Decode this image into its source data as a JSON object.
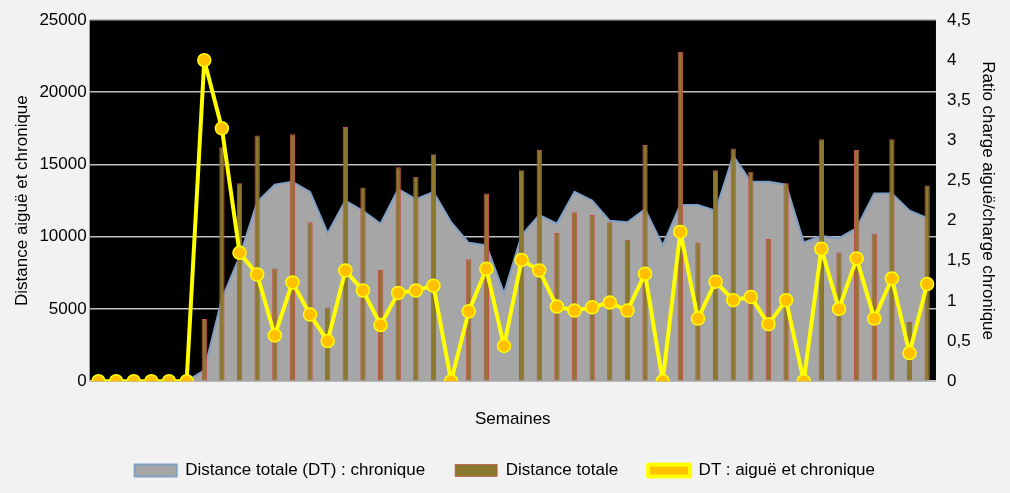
{
  "chart_data": {
    "type": "bar",
    "xlabel": "Semaines",
    "ylabel": "Distance aiguë et chronique",
    "y2label": "Ratio charge aiguë/charge chronique",
    "categories": [
      null,
      null,
      null,
      null,
      null,
      null,
      null,
      null,
      null,
      null,
      null,
      null,
      null,
      null,
      null,
      null,
      null,
      null,
      null,
      null,
      null,
      null,
      null,
      null,
      null,
      null,
      null,
      null,
      null,
      null,
      null,
      null,
      null,
      null,
      null,
      null,
      null,
      null,
      null,
      null,
      null,
      null,
      null,
      null,
      null,
      null,
      null,
      null
    ],
    "series": [
      {
        "name": "Distance totale (DT) : chronique",
        "type": "area",
        "color": "#a6a6a6",
        "values": [
          0,
          0,
          0,
          0,
          0,
          0,
          750,
          5700,
          8600,
          12400,
          13600,
          13800,
          13100,
          10250,
          12500,
          11800,
          10900,
          13300,
          12600,
          13100,
          11000,
          9580,
          9400,
          6100,
          10100,
          11500,
          10900,
          13100,
          12500,
          11100,
          11000,
          11900,
          9400,
          12200,
          12200,
          11800,
          15600,
          13800,
          13800,
          13600,
          9600,
          10050,
          9900,
          10600,
          13000,
          13000,
          11800,
          11300
        ]
      },
      {
        "name": "Distance totale",
        "color": "#8b7a2e",
        "values": [
          null,
          null,
          null,
          null,
          null,
          null,
          4300,
          16200,
          13700,
          17000,
          7800,
          17100,
          11000,
          5100,
          17600,
          13400,
          7700,
          14800,
          14150,
          15700,
          null,
          8440,
          13000,
          null,
          14600,
          16000,
          10250,
          11700,
          11500,
          11000,
          9780,
          16350,
          null,
          22800,
          9600,
          14600,
          16100,
          14500,
          9850,
          13700,
          null,
          16750,
          8900,
          16000,
          10200,
          16750,
          4100,
          13550
        ]
      },
      {
        "name": "DT : aiguë et chronique",
        "type": "line",
        "axis": "y2",
        "marker": "circle",
        "color": "#ffff00",
        "values": [
          0,
          0,
          0,
          0,
          0,
          0,
          4.0,
          3.15,
          1.6,
          1.33,
          0.57,
          1.23,
          0.83,
          0.5,
          1.38,
          1.13,
          0.7,
          1.1,
          1.13,
          1.19,
          0,
          0.87,
          1.4,
          0.44,
          1.51,
          1.38,
          0.93,
          0.88,
          0.92,
          0.98,
          0.88,
          1.34,
          0,
          1.86,
          0.78,
          1.24,
          1.01,
          1.05,
          0.71,
          1.01,
          0,
          1.65,
          0.9,
          1.53,
          0.78,
          1.28,
          0.35,
          1.21
        ]
      }
    ],
    "ylim": [
      0,
      25000
    ],
    "yticks": [
      0,
      5000,
      10000,
      15000,
      20000,
      25000
    ],
    "y2lim": [
      0,
      4.5
    ],
    "y2ticks": [
      0,
      {
        "value": 0.5,
        "label": "0,5"
      },
      1,
      {
        "value": 1.5,
        "label": "1,5"
      },
      2,
      {
        "value": 2.5,
        "label": "2,5"
      },
      3,
      {
        "value": 3.5,
        "label": "3,5"
      },
      4,
      {
        "value": 4.5,
        "label": "4,5"
      }
    ],
    "grid": "y",
    "legend": "bottom",
    "line_style": "solid"
  }
}
